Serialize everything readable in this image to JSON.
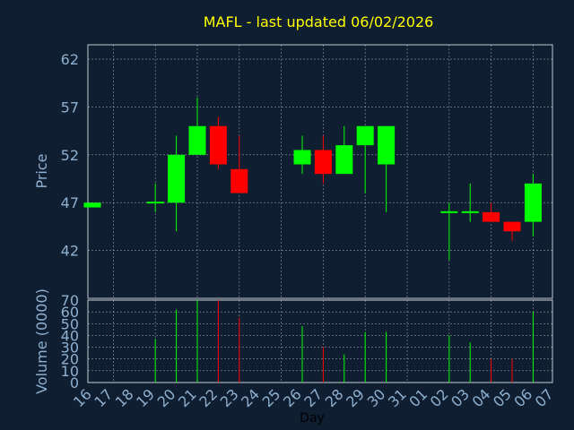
{
  "chart_data": {
    "type": "candlestick",
    "title": "MAFL - last updated 06/02/2026",
    "xlabel": "Day",
    "price_ylabel": "Price",
    "volume_ylabel": "Volume (0000)",
    "price_ylim": [
      37,
      63.5
    ],
    "price_ticks": [
      "62",
      "57",
      "52",
      "47",
      "42"
    ],
    "volume_ylim": [
      0,
      70
    ],
    "volume_ticks": [
      "70",
      "60",
      "50",
      "40",
      "30",
      "20",
      "10",
      "0"
    ],
    "x_ticks": [
      "16",
      "17",
      "18",
      "19",
      "20",
      "21",
      "22",
      "23",
      "24",
      "25",
      "26",
      "27",
      "28",
      "29",
      "30",
      "31",
      "01",
      "02",
      "03",
      "04",
      "05",
      "06",
      "07"
    ],
    "grid": true,
    "colors": {
      "up": "#00ff00",
      "down": "#ff0000",
      "title": "#ffff00",
      "axis_text": "#8fb0d0",
      "background": "#0f1e30",
      "grid": "#ffffff"
    },
    "candles": [
      {
        "day": "16",
        "open": 46.5,
        "close": 47.0,
        "high": 47.0,
        "low": 46.5,
        "volume": 0
      },
      {
        "day": "19",
        "open": 47.0,
        "close": 47.1,
        "high": 49.0,
        "low": 46.0,
        "volume": 37
      },
      {
        "day": "20",
        "open": 47.0,
        "close": 52.0,
        "high": 54.0,
        "low": 44.0,
        "volume": 62
      },
      {
        "day": "21",
        "open": 52.0,
        "close": 55.0,
        "high": 58.0,
        "low": 52.0,
        "volume": 70
      },
      {
        "day": "22",
        "open": 55.0,
        "close": 51.0,
        "high": 56.0,
        "low": 50.5,
        "volume": 70
      },
      {
        "day": "23",
        "open": 50.5,
        "close": 48.0,
        "high": 54.0,
        "low": 48.0,
        "volume": 55
      },
      {
        "day": "26",
        "open": 51.0,
        "close": 52.5,
        "high": 54.0,
        "low": 50.0,
        "volume": 48
      },
      {
        "day": "27",
        "open": 52.5,
        "close": 50.0,
        "high": 54.0,
        "low": 49.0,
        "volume": 30
      },
      {
        "day": "28",
        "open": 50.0,
        "close": 53.0,
        "high": 55.0,
        "low": 50.0,
        "volume": 24
      },
      {
        "day": "29",
        "open": 53.0,
        "close": 55.0,
        "high": 55.0,
        "low": 48.0,
        "volume": 43
      },
      {
        "day": "30",
        "open": 51.0,
        "close": 55.0,
        "high": 55.0,
        "low": 46.0,
        "volume": 43
      },
      {
        "day": "02",
        "open": 46.0,
        "close": 46.1,
        "high": 47.0,
        "low": 41.0,
        "volume": 40
      },
      {
        "day": "03",
        "open": 46.0,
        "close": 46.1,
        "high": 49.0,
        "low": 45.0,
        "volume": 34
      },
      {
        "day": "04",
        "open": 46.0,
        "close": 45.0,
        "high": 47.0,
        "low": 45.0,
        "volume": 20
      },
      {
        "day": "05",
        "open": 45.0,
        "close": 44.0,
        "high": 45.0,
        "low": 43.0,
        "volume": 20
      },
      {
        "day": "06",
        "open": 45.0,
        "close": 49.0,
        "high": 50.0,
        "low": 43.5,
        "volume": 60
      }
    ]
  }
}
